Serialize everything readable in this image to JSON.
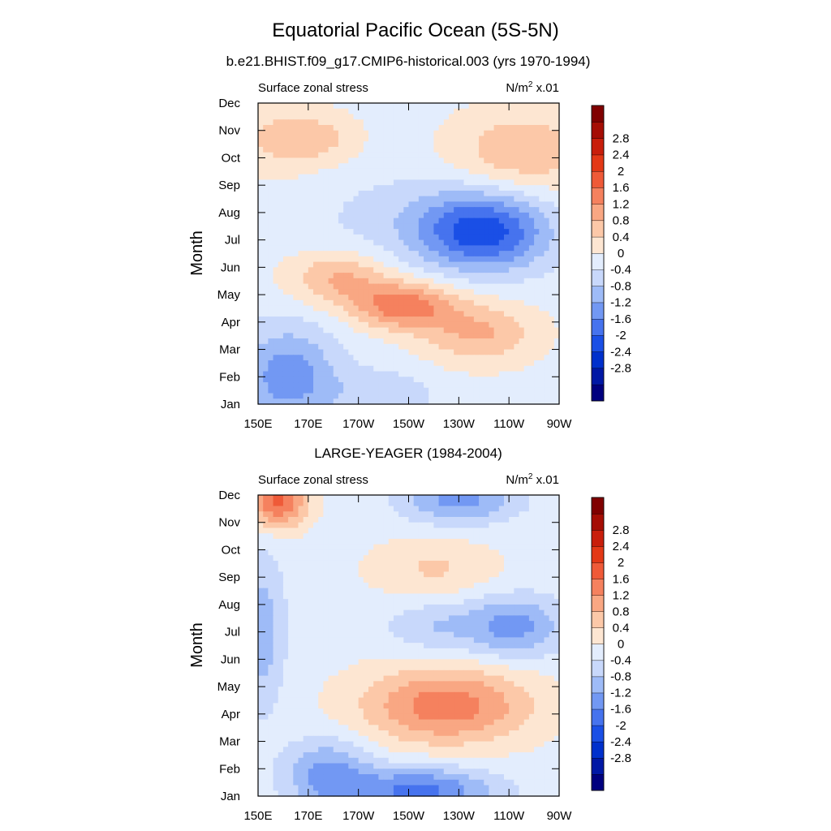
{
  "figure": {
    "title": "Equatorial Pacific Ocean (5S-5N)"
  },
  "palette": {
    "colors": [
      "#00007f",
      "#0018a5",
      "#0030cc",
      "#1a4fe6",
      "#4673ee",
      "#7298f3",
      "#9ebbf7",
      "#c8d8fb",
      "#e3edfd",
      "#fde6d2",
      "#fcc8a8",
      "#f9a783",
      "#f5815e",
      "#ef5a38",
      "#e33816",
      "#c81e0b",
      "#a50d04",
      "#800000"
    ],
    "levels": [
      -3.2,
      -2.8,
      -2.4,
      -2.0,
      -1.6,
      -1.2,
      -0.8,
      -0.4,
      0,
      0.4,
      0.8,
      1.2,
      1.6,
      2.0,
      2.4,
      2.8,
      3.2
    ]
  },
  "chart_data": [
    {
      "type": "heatmap",
      "id": "model",
      "title": "b.e21.BHIST.f09_g17.CMIP6-historical.003 (yrs 1970-1994)",
      "left_label": "Surface zonal stress",
      "units_base": "N/m",
      "units_sup": "2",
      "units_scale": "x.01",
      "ylabel": "Month",
      "x_ticks": [
        "150E",
        "170E",
        "170W",
        "150W",
        "130W",
        "110W",
        "90W"
      ],
      "x_tick_lon": [
        150,
        170,
        190,
        210,
        230,
        250,
        270
      ],
      "xlim": [
        150,
        270
      ],
      "y_ticks": [
        "Jan",
        "Feb",
        "Mar",
        "Apr",
        "May",
        "Jun",
        "Jul",
        "Aug",
        "Sep",
        "Oct",
        "Nov",
        "Dec"
      ],
      "ylim": [
        1,
        12
      ],
      "colorbar_labels": [
        "-2.8",
        "-2.4",
        "-2",
        "-1.6",
        "-1.2",
        "-0.8",
        "-0.4",
        "0",
        "0.4",
        "0.8",
        "1.2",
        "1.6",
        "2",
        "2.4",
        "2.8"
      ],
      "features": [
        {
          "lon": 160,
          "month": 10.7,
          "amp": 0.7,
          "slon": 14,
          "smon": 0.9
        },
        {
          "lon": 178,
          "month": 10.7,
          "amp": 0.4,
          "slon": 10,
          "smon": 0.6
        },
        {
          "lon": 255,
          "month": 10.2,
          "amp": 0.9,
          "slon": 20,
          "smon": 1.1
        },
        {
          "lon": 240,
          "month": 7.3,
          "amp": -2.0,
          "slon": 18,
          "smon": 1.0
        },
        {
          "lon": 210,
          "month": 7.8,
          "amp": -0.4,
          "slon": 28,
          "smon": 1.2
        },
        {
          "lon": 182,
          "month": 5.6,
          "amp": 1.0,
          "slon": 14,
          "smon": 0.7
        },
        {
          "lon": 208,
          "month": 4.6,
          "amp": 1.6,
          "slon": 14,
          "smon": 0.6
        },
        {
          "lon": 238,
          "month": 3.6,
          "amp": 1.0,
          "slon": 16,
          "smon": 0.8
        },
        {
          "lon": 162,
          "month": 2.0,
          "amp": -1.3,
          "slon": 14,
          "smon": 1.3
        },
        {
          "lon": 200,
          "month": 1.4,
          "amp": -0.6,
          "slon": 14,
          "smon": 0.6
        }
      ]
    },
    {
      "type": "heatmap",
      "id": "obs",
      "title": "LARGE-YEAGER (1984-2004)",
      "left_label": "Surface zonal stress",
      "units_base": "N/m",
      "units_sup": "2",
      "units_scale": "x.01",
      "ylabel": "Month",
      "x_ticks": [
        "150E",
        "170E",
        "170W",
        "150W",
        "130W",
        "110W",
        "90W"
      ],
      "x_tick_lon": [
        150,
        170,
        190,
        210,
        230,
        250,
        270
      ],
      "xlim": [
        150,
        270
      ],
      "y_ticks": [
        "Jan",
        "Feb",
        "Mar",
        "Apr",
        "May",
        "Jun",
        "Jul",
        "Aug",
        "Sep",
        "Oct",
        "Nov",
        "Dec"
      ],
      "ylim": [
        1,
        12
      ],
      "colorbar_labels": [
        "-2.8",
        "-2.4",
        "-2",
        "-1.6",
        "-1.2",
        "-0.8",
        "-0.4",
        "0",
        "0.4",
        "0.8",
        "1.2",
        "1.6",
        "2",
        "2.4",
        "2.8"
      ],
      "features": [
        {
          "lon": 158,
          "month": 11.8,
          "amp": 1.9,
          "slon": 8,
          "smon": 0.7
        },
        {
          "lon": 230,
          "month": 11.8,
          "amp": -1.2,
          "slon": 16,
          "smon": 0.6
        },
        {
          "lon": 220,
          "month": 9.3,
          "amp": 0.6,
          "slon": 18,
          "smon": 0.8
        },
        {
          "lon": 252,
          "month": 7.2,
          "amp": -1.2,
          "slon": 14,
          "smon": 0.8
        },
        {
          "lon": 220,
          "month": 7.2,
          "amp": -0.6,
          "slon": 14,
          "smon": 0.7
        },
        {
          "lon": 152,
          "month": 7.0,
          "amp": -0.9,
          "slon": 6,
          "smon": 2.0
        },
        {
          "lon": 225,
          "month": 4.3,
          "amp": 1.6,
          "slon": 24,
          "smon": 1.0
        },
        {
          "lon": 178,
          "month": 1.8,
          "amp": -1.2,
          "slon": 12,
          "smon": 0.9
        },
        {
          "lon": 215,
          "month": 1.2,
          "amp": -1.6,
          "slon": 20,
          "smon": 0.6
        }
      ]
    }
  ]
}
